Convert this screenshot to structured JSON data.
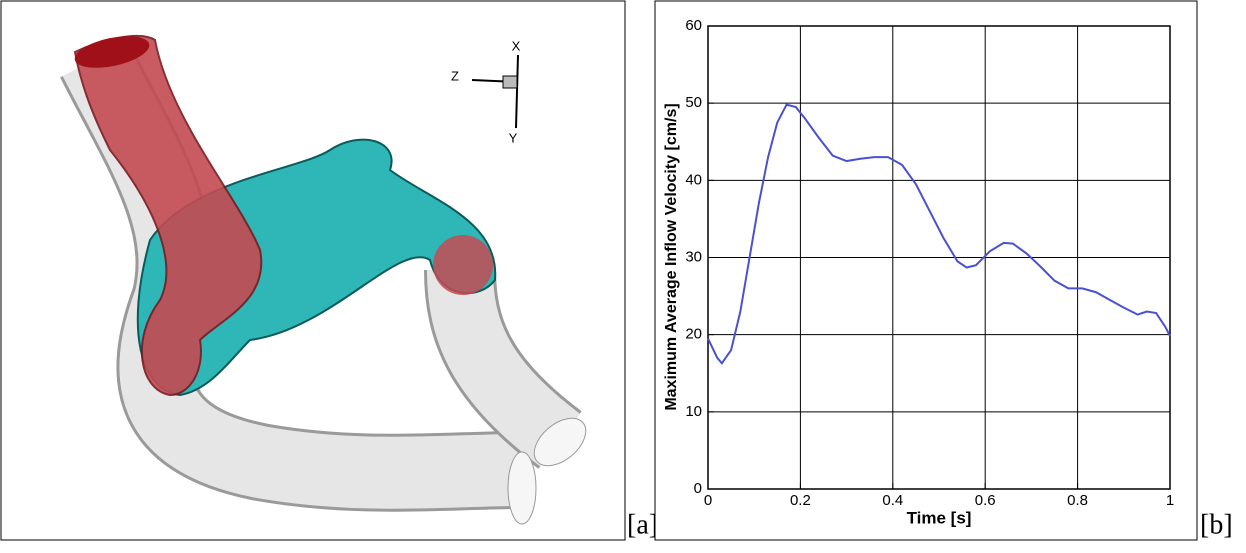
{
  "panel_labels": [
    "[a]",
    "[b]"
  ],
  "axis_triad": [
    "X",
    "Z",
    "Y"
  ],
  "chart_data": {
    "type": "line",
    "xlabel": "Time [s]",
    "ylabel": "Maximum Average Inflow Velocity [cm/s]",
    "x": [
      0,
      0.02,
      0.03,
      0.05,
      0.07,
      0.09,
      0.11,
      0.13,
      0.15,
      0.17,
      0.19,
      0.21,
      0.24,
      0.27,
      0.3,
      0.33,
      0.36,
      0.39,
      0.42,
      0.45,
      0.48,
      0.51,
      0.54,
      0.56,
      0.58,
      0.61,
      0.64,
      0.66,
      0.69,
      0.72,
      0.75,
      0.78,
      0.81,
      0.84,
      0.87,
      0.9,
      0.93,
      0.95,
      0.97,
      0.99,
      1
    ],
    "values": [
      19.5,
      17,
      16.3,
      18,
      23,
      30,
      37,
      43,
      47.5,
      49.8,
      49.5,
      48,
      45.5,
      43.2,
      42.5,
      42.8,
      43,
      43,
      42,
      39.5,
      36,
      32.5,
      29.5,
      28.7,
      29,
      30.8,
      31.9,
      31.8,
      30.5,
      28.8,
      27,
      26,
      26,
      25.5,
      24.5,
      23.5,
      22.6,
      23,
      22.8,
      21,
      19.8
    ],
    "color": "#4a50d2",
    "xlim": [
      0,
      1
    ],
    "xticks": [
      0,
      0.2,
      0.4,
      0.6,
      0.8,
      1
    ],
    "ylim": [
      0,
      60
    ],
    "yticks": [
      0,
      10,
      20,
      30,
      40,
      50,
      60
    ],
    "grid": true
  }
}
